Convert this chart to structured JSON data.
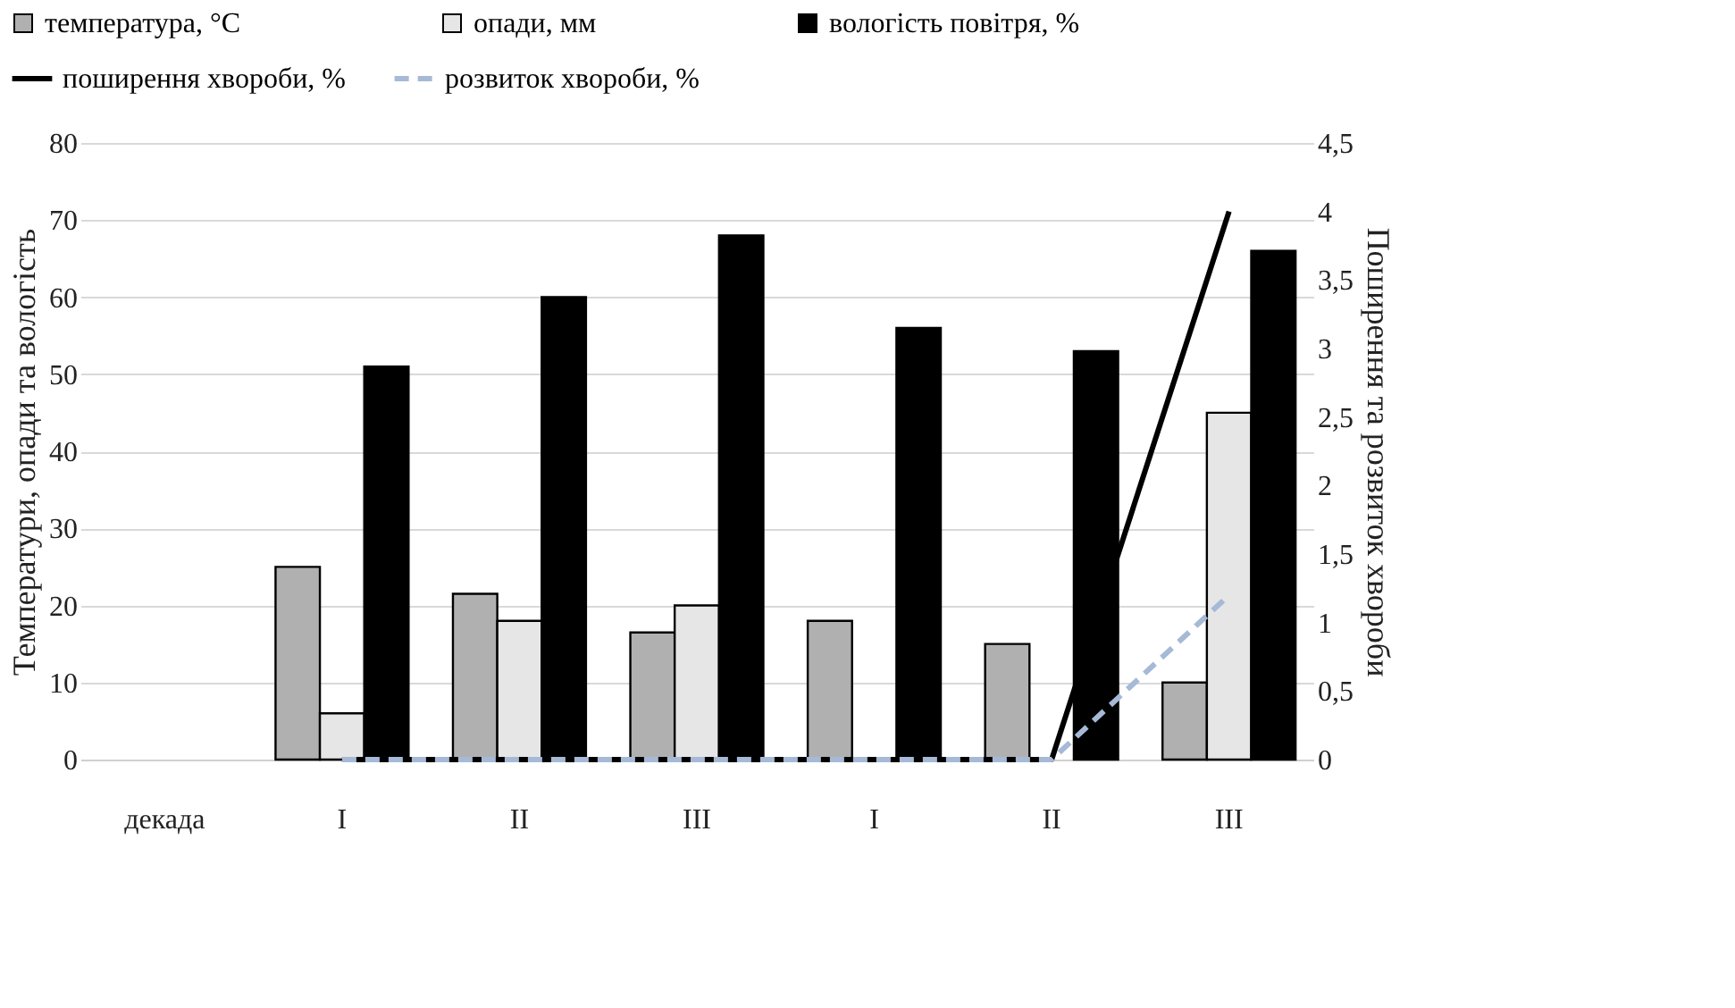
{
  "chart_data": {
    "type": "bar",
    "categories": [
      "декада",
      "I",
      "II",
      "III",
      "I",
      "II",
      "III"
    ],
    "ylabel": "Температури, опади та вологість",
    "y2label": "Поширення та розвиток хвороби",
    "ylim": [
      0,
      80
    ],
    "yticks": [
      0,
      10,
      20,
      30,
      40,
      50,
      60,
      70,
      80
    ],
    "y2lim": [
      0,
      4.5
    ],
    "y2ticks": [
      {
        "value": 0,
        "label": "0"
      },
      {
        "value": 0.5,
        "label": "0,5"
      },
      {
        "value": 1,
        "label": "1"
      },
      {
        "value": 1.5,
        "label": "1,5"
      },
      {
        "value": 2,
        "label": "2"
      },
      {
        "value": 2.5,
        "label": "2,5"
      },
      {
        "value": 3,
        "label": "3"
      },
      {
        "value": 3.5,
        "label": "3,5"
      },
      {
        "value": 4,
        "label": "4"
      },
      {
        "value": 4.5,
        "label": "4,5"
      }
    ],
    "grid": "y",
    "legend": "top",
    "series": [
      {
        "name": "температура, °C",
        "color": "#b0b0b0",
        "values": [
          null,
          25,
          21.5,
          16.5,
          18,
          15,
          10
        ]
      },
      {
        "name": "опади, мм",
        "color": "#e6e6e6",
        "values": [
          null,
          6,
          18,
          20,
          null,
          null,
          45
        ]
      },
      {
        "name": "вологість повітря, %",
        "color": "#000000",
        "values": [
          null,
          51,
          60,
          68,
          56,
          53,
          66
        ]
      },
      {
        "name": "поширення хвороби, %",
        "type": "line",
        "axis": "y2",
        "color": "#000000",
        "line_style": "solid",
        "values": [
          null,
          0,
          0,
          0,
          0,
          0,
          4
        ]
      },
      {
        "name": "розвиток хвороби, %",
        "type": "line",
        "axis": "y2",
        "color": "#a6b9d6",
        "line_style": "dashed",
        "values": [
          null,
          0,
          0,
          0,
          0,
          0,
          1.2
        ]
      }
    ]
  }
}
